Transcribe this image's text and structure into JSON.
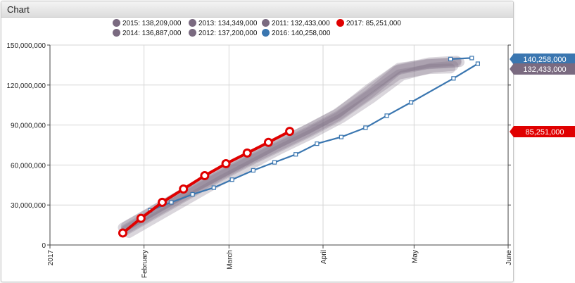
{
  "window": {
    "title": "Chart"
  },
  "legend": [
    {
      "label": "2015: 138,209,000",
      "color": "#7a6a80"
    },
    {
      "label": "2013: 134,349,000",
      "color": "#7a6a80"
    },
    {
      "label": "2011: 132,433,000",
      "color": "#7a6a80"
    },
    {
      "label": "2017: 85,251,000",
      "color": "#e00000"
    },
    {
      "label": "2014: 136,887,000",
      "color": "#7a6a80"
    },
    {
      "label": "2012: 137,200,000",
      "color": "#7a6a80"
    },
    {
      "label": "2016: 140,258,000",
      "color": "#3a76b0"
    }
  ],
  "chart_data": {
    "type": "line",
    "ylim": [
      0,
      150000000
    ],
    "yticks": [
      "0",
      "30,000,000",
      "60,000,000",
      "90,000,000",
      "120,000,000",
      "150,000,000"
    ],
    "ytick_values": [
      0,
      30000000,
      60000000,
      90000000,
      120000000,
      150000000
    ],
    "xlim": [
      "2017-01-01",
      "2017-06-01"
    ],
    "xticks": [
      "2017",
      "February",
      "March",
      "April",
      "May",
      "June"
    ],
    "xtick_dates": [
      "2017-01-01",
      "2017-02-01",
      "2017-03-01",
      "2017-04-01",
      "2017-05-01",
      "2017-06-01"
    ],
    "end_labels": [
      {
        "text": "140,258,000",
        "value": 140258000,
        "color": "#3a76b0"
      },
      {
        "text": "132,433,000",
        "value": 132433000,
        "color": "#7a6a80"
      },
      {
        "text": "85,251,000",
        "value": 85251000,
        "color": "#e00000"
      }
    ],
    "background_series": [
      {
        "name": "2011",
        "color": "#7a6a80",
        "x": [
          "2017-01-26",
          "2017-02-05",
          "2017-02-15",
          "2017-02-25",
          "2017-03-07",
          "2017-03-17",
          "2017-03-27",
          "2017-04-06",
          "2017-04-16",
          "2017-04-26",
          "2017-05-06",
          "2017-05-13"
        ],
        "values": [
          11000000,
          24000000,
          37000000,
          50000000,
          62000000,
          73000000,
          84000000,
          96000000,
          112000000,
          128000000,
          132000000,
          132433000
        ]
      },
      {
        "name": "2012",
        "color": "#7a6a80",
        "x": [
          "2017-01-26",
          "2017-02-05",
          "2017-02-15",
          "2017-02-25",
          "2017-03-07",
          "2017-03-17",
          "2017-03-27",
          "2017-04-06",
          "2017-04-16",
          "2017-04-26",
          "2017-05-06",
          "2017-05-16"
        ],
        "values": [
          14000000,
          27000000,
          40000000,
          52000000,
          64000000,
          76000000,
          87000000,
          99000000,
          117000000,
          133000000,
          136000000,
          137200000
        ]
      },
      {
        "name": "2013",
        "color": "#7a6a80",
        "x": [
          "2017-01-27",
          "2017-02-06",
          "2017-02-16",
          "2017-02-26",
          "2017-03-08",
          "2017-03-18",
          "2017-03-28",
          "2017-04-07",
          "2017-04-17",
          "2017-04-27",
          "2017-05-07",
          "2017-05-14"
        ],
        "values": [
          9000000,
          22000000,
          35000000,
          48000000,
          60000000,
          72000000,
          83000000,
          95000000,
          110000000,
          127000000,
          133000000,
          134349000
        ]
      },
      {
        "name": "2014",
        "color": "#7a6a80",
        "x": [
          "2017-01-25",
          "2017-02-04",
          "2017-02-14",
          "2017-02-24",
          "2017-03-06",
          "2017-03-16",
          "2017-03-26",
          "2017-04-05",
          "2017-04-15",
          "2017-04-25",
          "2017-05-05",
          "2017-05-15"
        ],
        "values": [
          13000000,
          26000000,
          39000000,
          51000000,
          63000000,
          75000000,
          86000000,
          98000000,
          114000000,
          131000000,
          135500000,
          136887000
        ]
      },
      {
        "name": "2015",
        "color": "#7a6a80",
        "x": [
          "2017-01-26",
          "2017-02-05",
          "2017-02-15",
          "2017-02-25",
          "2017-03-07",
          "2017-03-17",
          "2017-03-27",
          "2017-04-06",
          "2017-04-16",
          "2017-04-26",
          "2017-05-06",
          "2017-05-15"
        ],
        "values": [
          12000000,
          25000000,
          38000000,
          51000000,
          63000000,
          74000000,
          85000000,
          97000000,
          113000000,
          132000000,
          137000000,
          138209000
        ]
      }
    ],
    "series": [
      {
        "name": "2016",
        "color": "#3a76b0",
        "x": [
          "2017-02-03",
          "2017-02-10",
          "2017-02-17",
          "2017-02-24",
          "2017-03-02",
          "2017-03-09",
          "2017-03-16",
          "2017-03-23",
          "2017-03-30",
          "2017-04-07",
          "2017-04-15",
          "2017-04-22",
          "2017-04-30",
          "2017-05-14",
          "2017-05-22"
        ],
        "values": [
          26000000,
          32000000,
          38000000,
          43000000,
          49000000,
          56000000,
          62000000,
          68000000,
          76000000,
          81000000,
          88000000,
          97000000,
          107000000,
          125000000,
          136000000
        ]
      },
      {
        "name": "2016-tail",
        "color": "#3a76b0",
        "x": [
          "2017-05-13",
          "2017-05-20"
        ],
        "values": [
          139500000,
          140258000
        ]
      },
      {
        "name": "2017",
        "color": "#e00000",
        "x": [
          "2017-01-25",
          "2017-01-31",
          "2017-02-07",
          "2017-02-14",
          "2017-02-21",
          "2017-02-28",
          "2017-03-07",
          "2017-03-14",
          "2017-03-21"
        ],
        "values": [
          9000000,
          20000000,
          32000000,
          42000000,
          52000000,
          61000000,
          69000000,
          77000000,
          85251000
        ]
      }
    ]
  }
}
